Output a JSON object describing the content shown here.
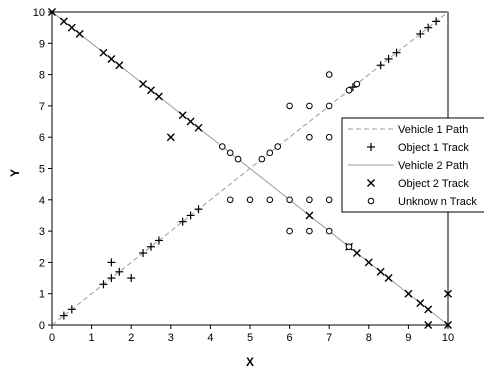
{
  "chart_data": {
    "type": "scatter",
    "title": "",
    "xlabel": "X",
    "ylabel": "Y",
    "xlim": [
      0,
      10
    ],
    "ylim": [
      0,
      10
    ],
    "xticks": [
      "0",
      "1",
      "2",
      "3",
      "4",
      "5",
      "6",
      "7",
      "8",
      "9",
      "10"
    ],
    "yticks": [
      "0",
      "1",
      "2",
      "3",
      "4",
      "5",
      "6",
      "7",
      "8",
      "9",
      "10"
    ],
    "grid": false,
    "legend_position": "right",
    "series": [
      {
        "name": "Vehicle 1 Path",
        "kind": "line",
        "style": "dashed",
        "color": "#9a9a9a",
        "points": [
          [
            0,
            0
          ],
          [
            10,
            10
          ]
        ]
      },
      {
        "name": "Object 1 Track",
        "kind": "marker",
        "marker": "plus",
        "color": "#000000",
        "points": [
          [
            0.3,
            0.3
          ],
          [
            0.5,
            0.5
          ],
          [
            1.3,
            1.3
          ],
          [
            1.5,
            1.5
          ],
          [
            1.5,
            2.0
          ],
          [
            1.7,
            1.7
          ],
          [
            2.0,
            1.5
          ],
          [
            2.3,
            2.3
          ],
          [
            2.5,
            2.5
          ],
          [
            2.7,
            2.7
          ],
          [
            3.3,
            3.3
          ],
          [
            3.5,
            3.5
          ],
          [
            3.7,
            3.7
          ],
          [
            7.6,
            7.6
          ],
          [
            8.3,
            8.3
          ],
          [
            8.5,
            8.5
          ],
          [
            8.7,
            8.7
          ],
          [
            9.3,
            9.3
          ],
          [
            9.5,
            9.5
          ],
          [
            9.7,
            9.7
          ]
        ]
      },
      {
        "name": "Vehicle 2 Path",
        "kind": "line",
        "style": "solid",
        "color": "#9a9a9a",
        "points": [
          [
            0,
            10
          ],
          [
            10,
            0
          ]
        ]
      },
      {
        "name": "Object 2 Track",
        "kind": "marker",
        "marker": "x",
        "color": "#000000",
        "points": [
          [
            0,
            10
          ],
          [
            0.3,
            9.7
          ],
          [
            0.5,
            9.5
          ],
          [
            0.7,
            9.3
          ],
          [
            1.3,
            8.7
          ],
          [
            1.5,
            8.5
          ],
          [
            1.7,
            8.3
          ],
          [
            2.3,
            7.7
          ],
          [
            2.5,
            7.5
          ],
          [
            2.7,
            7.3
          ],
          [
            3.0,
            6.0
          ],
          [
            3.3,
            6.7
          ],
          [
            3.5,
            6.5
          ],
          [
            3.7,
            6.3
          ],
          [
            6.5,
            3.5
          ],
          [
            7.5,
            2.5
          ],
          [
            7.7,
            2.3
          ],
          [
            8.0,
            2.0
          ],
          [
            8.3,
            1.7
          ],
          [
            8.5,
            1.5
          ],
          [
            9.0,
            1.0
          ],
          [
            9.3,
            0.7
          ],
          [
            9.5,
            0.5
          ],
          [
            9.5,
            0
          ],
          [
            10,
            0
          ],
          [
            10,
            1
          ]
        ]
      },
      {
        "name": "Unknow n Track",
        "kind": "marker",
        "marker": "circle",
        "color": "#000000",
        "points": [
          [
            4.3,
            5.7
          ],
          [
            4.5,
            5.5
          ],
          [
            4.7,
            5.3
          ],
          [
            5.3,
            5.3
          ],
          [
            5.5,
            5.5
          ],
          [
            5.7,
            5.7
          ],
          [
            4.5,
            4.0
          ],
          [
            5.0,
            4.0
          ],
          [
            5.5,
            4.0
          ],
          [
            6.0,
            4.0
          ],
          [
            6.0,
            3.0
          ],
          [
            6.0,
            7.0
          ],
          [
            6.5,
            7.0
          ],
          [
            6.5,
            6.0
          ],
          [
            6.5,
            4.0
          ],
          [
            6.5,
            3.0
          ],
          [
            7.0,
            8.0
          ],
          [
            7.0,
            7.0
          ],
          [
            7.0,
            6.0
          ],
          [
            7.0,
            4.0
          ],
          [
            7.0,
            3.0
          ],
          [
            7.5,
            7.5
          ],
          [
            7.7,
            7.7
          ],
          [
            7.5,
            2.5
          ]
        ]
      }
    ]
  }
}
